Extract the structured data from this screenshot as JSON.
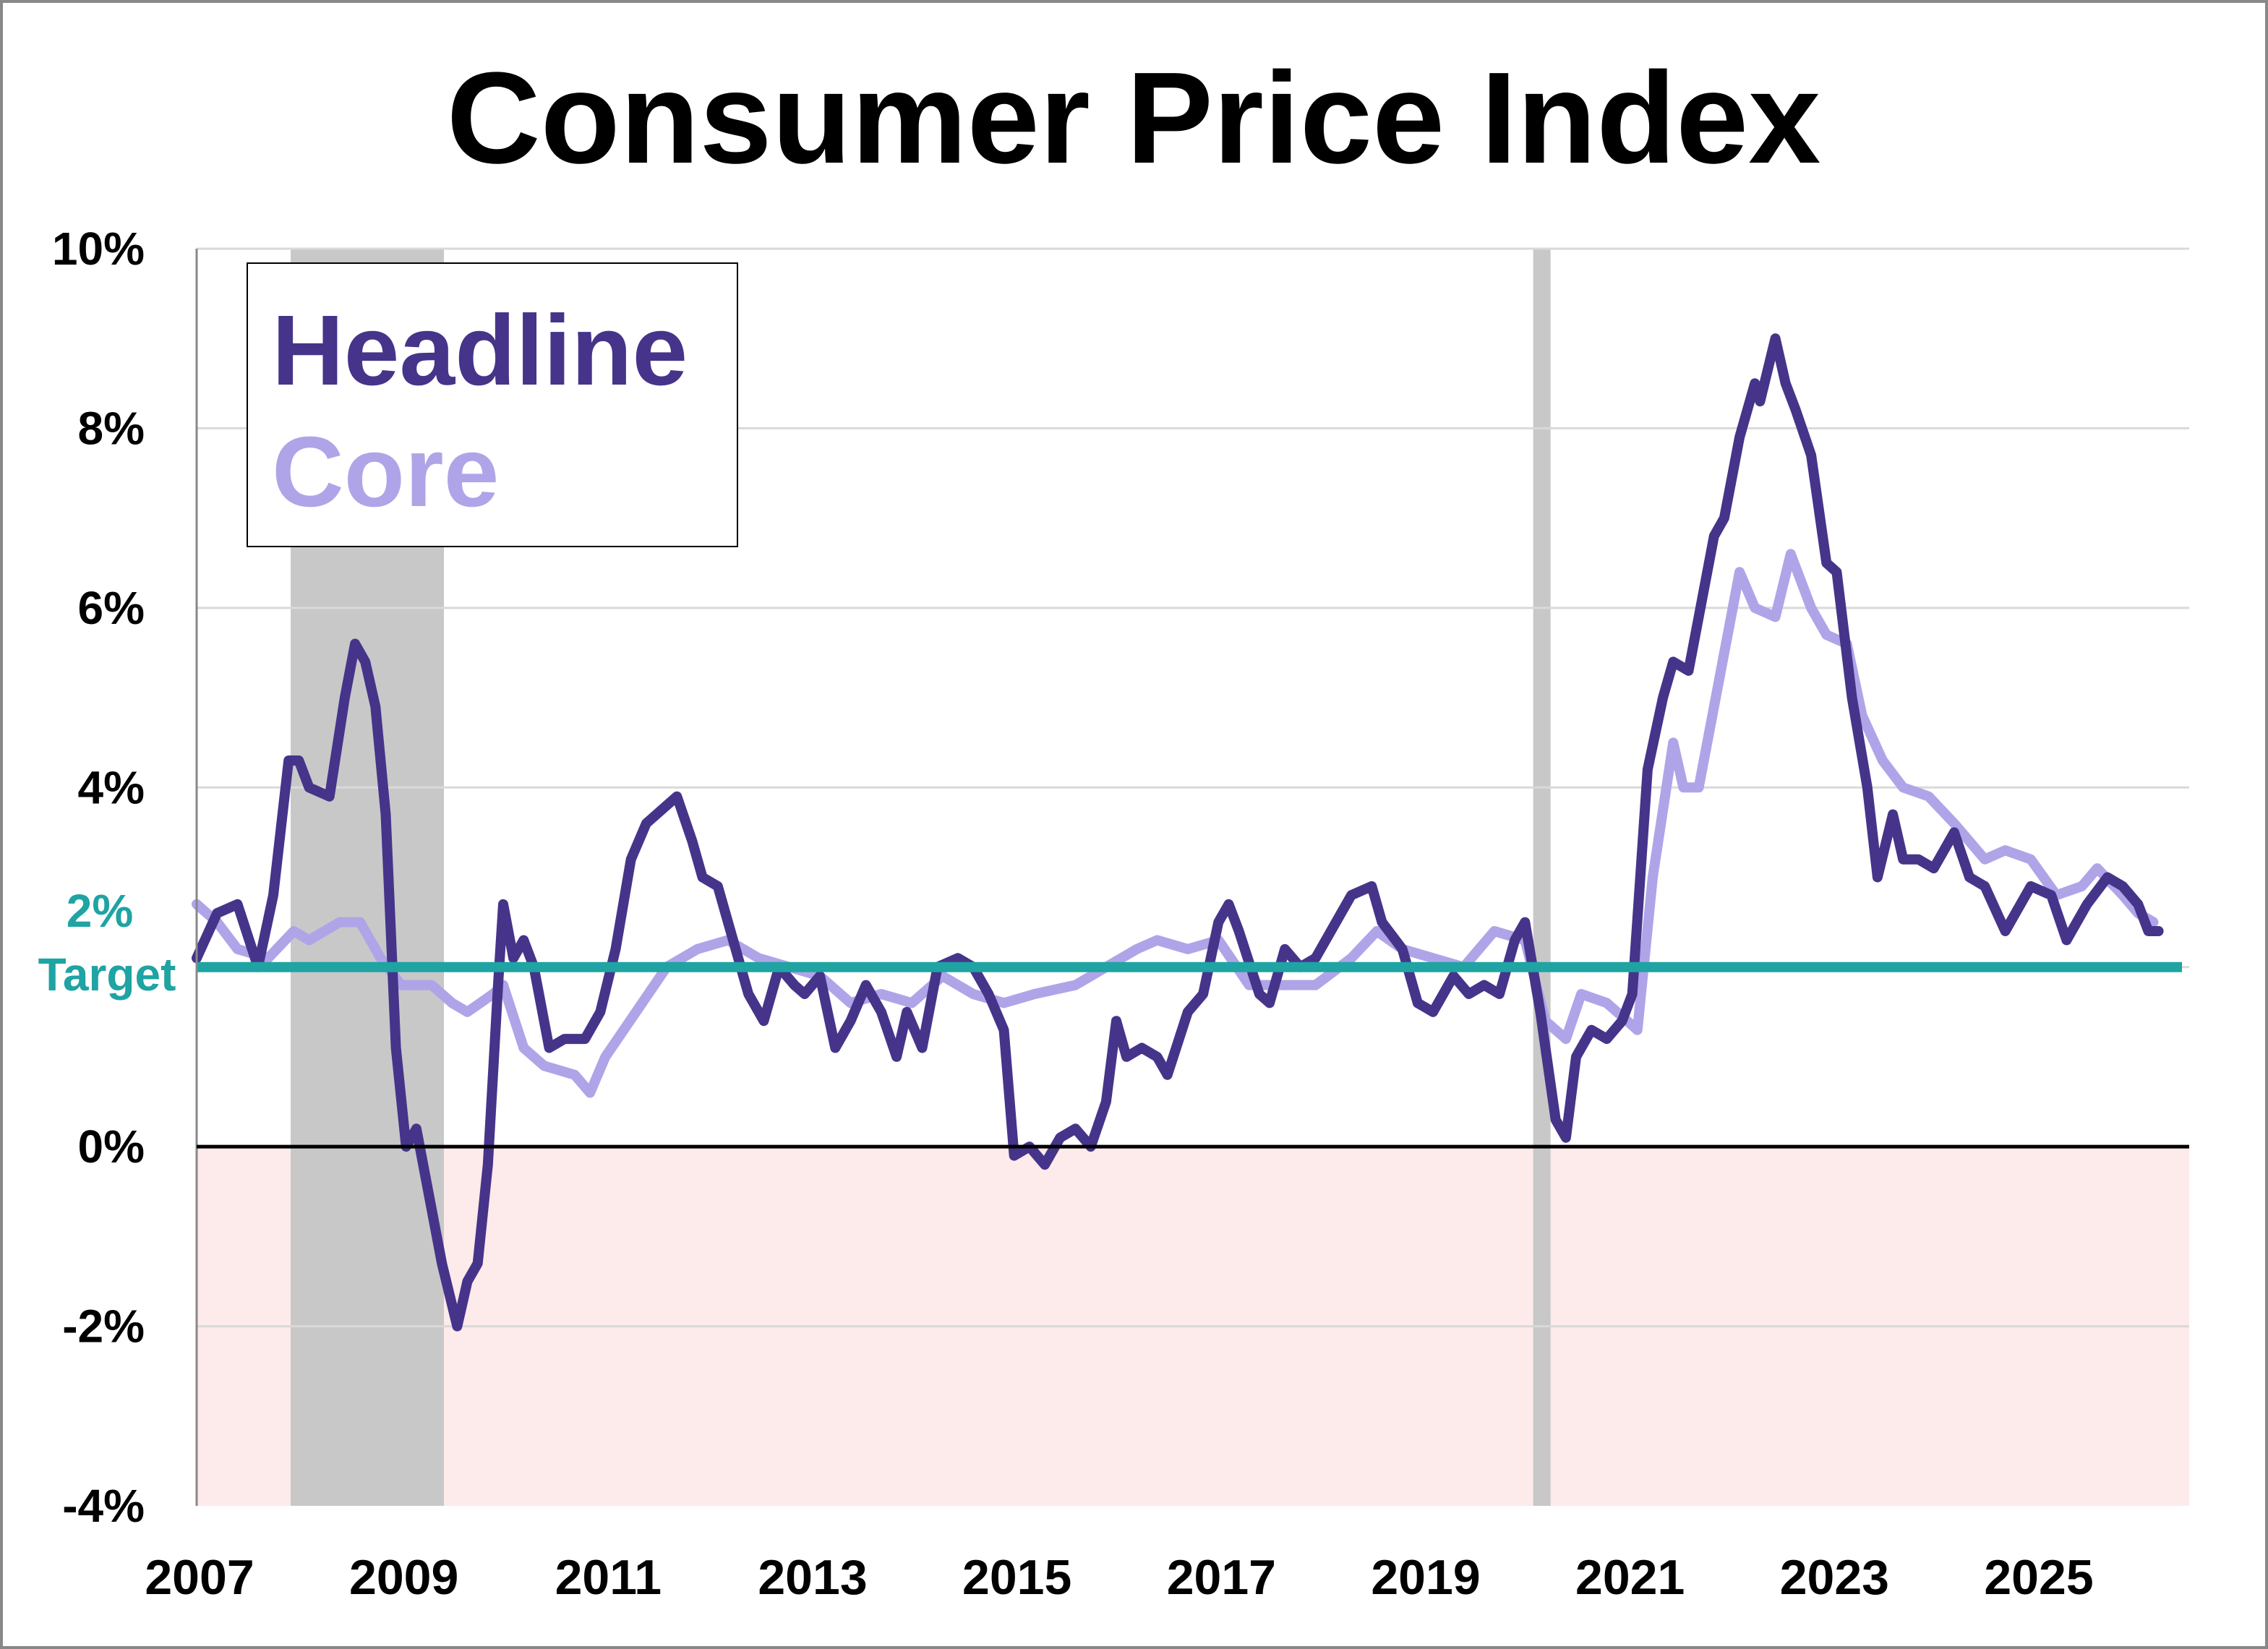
{
  "chart_data": {
    "type": "line",
    "title": "Consumer Price Index",
    "xlabel": "",
    "ylabel": "",
    "xlim": [
      2007,
      2026.5
    ],
    "ylim": [
      -4,
      10
    ],
    "x_ticks": [
      "2007",
      "2009",
      "2011",
      "2013",
      "2015",
      "2017",
      "2019",
      "2021",
      "2023",
      "2025"
    ],
    "y_ticks": [
      "10%",
      "8%",
      "6%",
      "4%",
      "2%",
      "0%",
      "-2%",
      "-4%"
    ],
    "y_tick_values": [
      10,
      8,
      6,
      4,
      2,
      0,
      -2,
      -4
    ],
    "grid": "horizontal",
    "legend_placement": "top-left",
    "recessions": [
      [
        2007.92,
        2009.42
      ],
      [
        2020.08,
        2020.25
      ]
    ],
    "negative_region_color": "#fdeaea",
    "target": {
      "value": 2,
      "label_value": "2%",
      "label_text": "Target",
      "color": "#1fa3a3"
    },
    "series": [
      {
        "name": "Headline",
        "color": "#46348a",
        "x": [
          2007.0,
          2007.2,
          2007.4,
          2007.6,
          2007.75,
          2007.9,
          2008.0,
          2008.1,
          2008.3,
          2008.45,
          2008.55,
          2008.65,
          2008.75,
          2008.85,
          2008.95,
          2009.05,
          2009.15,
          2009.25,
          2009.4,
          2009.55,
          2009.65,
          2009.75,
          2009.85,
          2009.95,
          2010.0,
          2010.1,
          2010.2,
          2010.3,
          2010.45,
          2010.6,
          2010.8,
          2010.95,
          2011.1,
          2011.25,
          2011.4,
          2011.6,
          2011.7,
          2011.85,
          2011.95,
          2012.1,
          2012.25,
          2012.4,
          2012.55,
          2012.7,
          2012.85,
          2012.95,
          2013.1,
          2013.25,
          2013.4,
          2013.55,
          2013.7,
          2013.85,
          2013.95,
          2014.1,
          2014.25,
          2014.45,
          2014.6,
          2014.75,
          2014.9,
          2015.0,
          2015.15,
          2015.3,
          2015.45,
          2015.6,
          2015.75,
          2015.9,
          2016.0,
          2016.1,
          2016.25,
          2016.4,
          2016.5,
          2016.7,
          2016.85,
          2017.0,
          2017.1,
          2017.2,
          2017.4,
          2017.5,
          2017.65,
          2017.8,
          2017.95,
          2018.1,
          2018.3,
          2018.5,
          2018.6,
          2018.8,
          2018.95,
          2019.1,
          2019.3,
          2019.45,
          2019.6,
          2019.75,
          2019.9,
          2020.0,
          2020.15,
          2020.3,
          2020.4,
          2020.5,
          2020.65,
          2020.8,
          2020.95,
          2021.05,
          2021.2,
          2021.35,
          2021.45,
          2021.6,
          2021.75,
          2021.85,
          2021.95,
          2022.1,
          2022.25,
          2022.3,
          2022.45,
          2022.55,
          2022.65,
          2022.8,
          2022.95,
          2023.05,
          2023.2,
          2023.35,
          2023.45,
          2023.6,
          2023.7,
          2023.85,
          2024.0,
          2024.2,
          2024.35,
          2024.5,
          2024.7,
          2024.95,
          2025.15,
          2025.3,
          2025.5,
          2025.7,
          2025.85,
          2026.0,
          2026.1,
          2026.2
        ],
        "values": [
          2.1,
          2.6,
          2.7,
          2.0,
          2.8,
          4.3,
          4.3,
          4.0,
          3.9,
          5.0,
          5.6,
          5.4,
          4.9,
          3.7,
          1.1,
          0.0,
          0.2,
          -0.4,
          -1.3,
          -2.0,
          -1.5,
          -1.3,
          -0.2,
          1.8,
          2.7,
          2.1,
          2.3,
          2.0,
          1.1,
          1.2,
          1.2,
          1.5,
          2.2,
          3.2,
          3.6,
          3.8,
          3.9,
          3.4,
          3.0,
          2.9,
          2.3,
          1.7,
          1.4,
          2.0,
          1.8,
          1.7,
          1.9,
          1.1,
          1.4,
          1.8,
          1.5,
          1.0,
          1.5,
          1.1,
          2.0,
          2.1,
          2.0,
          1.7,
          1.3,
          -0.1,
          0.0,
          -0.2,
          0.1,
          0.2,
          0.0,
          0.5,
          1.4,
          1.0,
          1.1,
          1.0,
          0.8,
          1.5,
          1.7,
          2.5,
          2.7,
          2.4,
          1.7,
          1.6,
          2.2,
          2.0,
          2.1,
          2.4,
          2.8,
          2.9,
          2.5,
          2.2,
          1.6,
          1.5,
          1.9,
          1.7,
          1.8,
          1.7,
          2.3,
          2.5,
          1.5,
          0.3,
          0.1,
          1.0,
          1.3,
          1.2,
          1.4,
          1.7,
          4.2,
          5.0,
          5.4,
          5.3,
          6.2,
          6.8,
          7.0,
          7.9,
          8.5,
          8.3,
          9.0,
          8.5,
          8.2,
          7.7,
          6.5,
          6.4,
          5.0,
          4.0,
          3.0,
          3.7,
          3.2,
          3.2,
          3.1,
          3.5,
          3.0,
          2.9,
          2.4,
          2.9,
          2.8,
          2.3,
          2.7,
          3.0,
          2.9,
          2.7,
          2.4,
          2.4
        ]
      },
      {
        "name": "Core",
        "color": "#b0a4e8",
        "x": [
          2007.0,
          2007.2,
          2007.4,
          2007.7,
          2007.95,
          2008.1,
          2008.4,
          2008.6,
          2008.8,
          2009.0,
          2009.3,
          2009.5,
          2009.65,
          2009.9,
          2010.0,
          2010.2,
          2010.4,
          2010.7,
          2010.85,
          2011.0,
          2011.3,
          2011.6,
          2011.9,
          2012.2,
          2012.5,
          2012.8,
          2013.1,
          2013.4,
          2013.7,
          2014.0,
          2014.3,
          2014.6,
          2014.9,
          2015.2,
          2015.6,
          2015.9,
          2016.2,
          2016.4,
          2016.7,
          2017.0,
          2017.3,
          2017.7,
          2017.95,
          2018.3,
          2018.55,
          2018.8,
          2019.1,
          2019.4,
          2019.7,
          2020.0,
          2020.2,
          2020.4,
          2020.55,
          2020.8,
          2021.0,
          2021.1,
          2021.25,
          2021.45,
          2021.55,
          2021.7,
          2021.95,
          2022.1,
          2022.25,
          2022.45,
          2022.6,
          2022.8,
          2022.95,
          2023.15,
          2023.3,
          2023.5,
          2023.7,
          2023.95,
          2024.2,
          2024.5,
          2024.7,
          2024.95,
          2025.2,
          2025.45,
          2025.6,
          2025.85,
          2026.0,
          2026.15
        ],
        "values": [
          2.7,
          2.5,
          2.2,
          2.1,
          2.4,
          2.3,
          2.5,
          2.5,
          2.1,
          1.8,
          1.8,
          1.6,
          1.5,
          1.7,
          1.8,
          1.1,
          0.9,
          0.8,
          0.6,
          1.0,
          1.5,
          2.0,
          2.2,
          2.3,
          2.1,
          2.0,
          1.9,
          1.6,
          1.7,
          1.6,
          1.9,
          1.7,
          1.6,
          1.7,
          1.8,
          2.0,
          2.2,
          2.3,
          2.2,
          2.3,
          1.8,
          1.8,
          1.8,
          2.1,
          2.4,
          2.2,
          2.1,
          2.0,
          2.4,
          2.3,
          1.4,
          1.2,
          1.7,
          1.6,
          1.4,
          1.3,
          3.0,
          4.5,
          4.0,
          4.0,
          5.5,
          6.4,
          6.0,
          5.9,
          6.6,
          6.0,
          5.7,
          5.6,
          4.8,
          4.3,
          4.0,
          3.9,
          3.6,
          3.2,
          3.3,
          3.2,
          2.8,
          2.9,
          3.1,
          2.8,
          2.6,
          2.5
        ]
      }
    ]
  }
}
